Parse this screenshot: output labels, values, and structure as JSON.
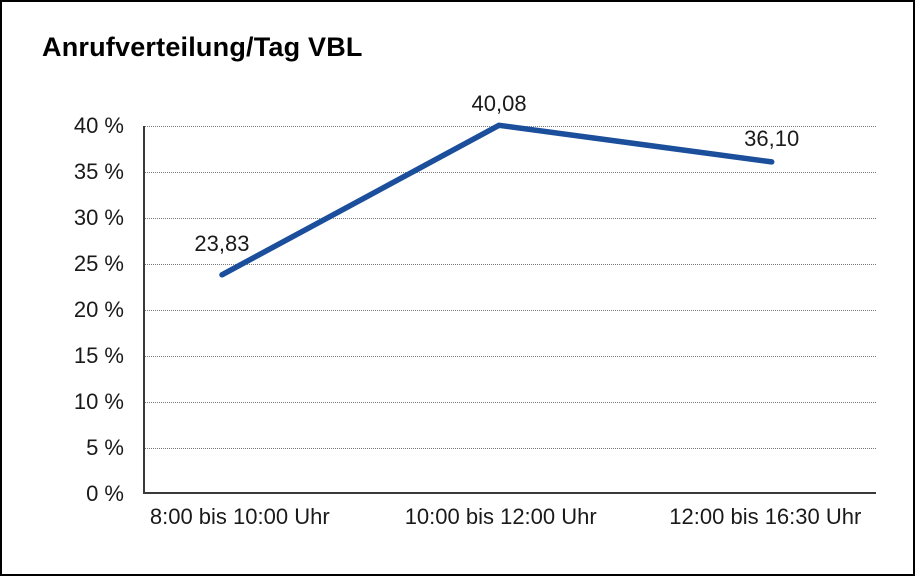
{
  "chart": {
    "title": "Anrufverteilung/Tag VBL"
  },
  "chart_data": {
    "type": "line",
    "title": "Anrufverteilung/Tag VBL",
    "categories": [
      "8:00 bis 10:00 Uhr",
      "10:00 bis 12:00 Uhr",
      "12:00 bis 16:30 Uhr"
    ],
    "series": [
      {
        "name": "Anrufverteilung",
        "values": [
          23.83,
          40.08,
          36.1
        ],
        "value_labels": [
          "23,83",
          "40,08",
          "36,10"
        ]
      }
    ],
    "xlabel": "",
    "ylabel": "",
    "ylim": [
      0,
      40
    ],
    "ytick_step": 5,
    "ytick_labels": [
      "0 %",
      "5 %",
      "10 %",
      "15 %",
      "20 %",
      "25 %",
      "30 %",
      "35 %",
      "40 %"
    ],
    "grid": "horizontal-dotted",
    "legend_position": "none",
    "line_color": "#1b4e9b",
    "text_color": "#1a1a1a",
    "axis_color": "#3a3a3a"
  }
}
